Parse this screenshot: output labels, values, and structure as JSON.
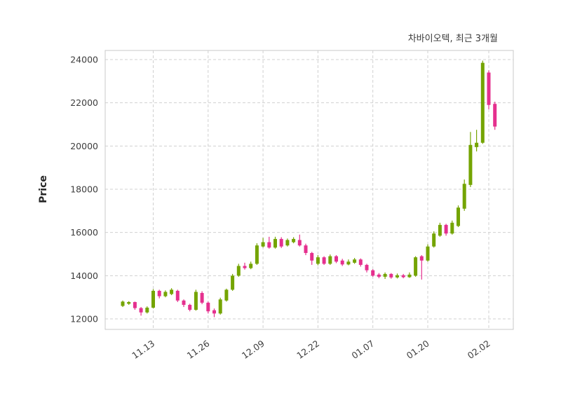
{
  "figure": {
    "title": "차바이오텍, 최근 3개월",
    "ylabel": "Price"
  },
  "chart_data": {
    "type": "candlestick",
    "title": "차바이오텍, 최근 3개월",
    "xlabel": "",
    "ylabel": "Price",
    "ylim": [
      11500,
      24400
    ],
    "grid": true,
    "legend": "none",
    "colors": {
      "up": "#74a402",
      "down": "#e5308e",
      "grid": "#d0d0d0",
      "spine": "#c8c8c8",
      "text": "#3d3d3d"
    },
    "y_ticks": [
      12000,
      14000,
      16000,
      18000,
      20000,
      22000,
      24000
    ],
    "x_ticks": [
      {
        "index": 5,
        "label": "11.13"
      },
      {
        "index": 14,
        "label": "11.26"
      },
      {
        "index": 23,
        "label": "12.09"
      },
      {
        "index": 32,
        "label": "12.22"
      },
      {
        "index": 41,
        "label": "01.07"
      },
      {
        "index": 50,
        "label": "01.20"
      },
      {
        "index": 60,
        "label": "02.02"
      }
    ],
    "ohlc_order": [
      "open",
      "high",
      "low",
      "close"
    ],
    "candles": [
      [
        12600,
        12850,
        12550,
        12800
      ],
      [
        12700,
        12820,
        12650,
        12780
      ],
      [
        12780,
        12800,
        12420,
        12500
      ],
      [
        12500,
        12550,
        12150,
        12300
      ],
      [
        12300,
        12580,
        12250,
        12520
      ],
      [
        12520,
        13380,
        12480,
        13300
      ],
      [
        13300,
        13350,
        12950,
        13050
      ],
      [
        13050,
        13320,
        13000,
        13250
      ],
      [
        13150,
        13420,
        13100,
        13350
      ],
      [
        13300,
        13350,
        12780,
        12850
      ],
      [
        12850,
        12900,
        12550,
        12650
      ],
      [
        12650,
        12700,
        12350,
        12420
      ],
      [
        12420,
        13350,
        12380,
        13250
      ],
      [
        13200,
        13280,
        12680,
        12750
      ],
      [
        12750,
        12800,
        12250,
        12350
      ],
      [
        12400,
        12480,
        12080,
        12250
      ],
      [
        12250,
        12980,
        12200,
        12900
      ],
      [
        12850,
        13400,
        12800,
        13350
      ],
      [
        13350,
        14080,
        13300,
        14000
      ],
      [
        14000,
        14550,
        13950,
        14450
      ],
      [
        14450,
        14600,
        14280,
        14350
      ],
      [
        14350,
        14650,
        14300,
        14550
      ],
      [
        14550,
        15500,
        14500,
        15400
      ],
      [
        15350,
        15750,
        15300,
        15550
      ],
      [
        15550,
        15800,
        15250,
        15300
      ],
      [
        15300,
        15800,
        15250,
        15700
      ],
      [
        15700,
        15780,
        15280,
        15350
      ],
      [
        15400,
        15720,
        15350,
        15650
      ],
      [
        15550,
        15780,
        15500,
        15700
      ],
      [
        15650,
        15900,
        15350,
        15400
      ],
      [
        15400,
        15480,
        14950,
        15050
      ],
      [
        15050,
        15100,
        14500,
        14700
      ],
      [
        14550,
        14950,
        14480,
        14850
      ],
      [
        14850,
        14900,
        14500,
        14550
      ],
      [
        14550,
        14980,
        14500,
        14900
      ],
      [
        14900,
        14950,
        14580,
        14650
      ],
      [
        14700,
        14780,
        14450,
        14520
      ],
      [
        14520,
        14750,
        14480,
        14650
      ],
      [
        14600,
        14820,
        14550,
        14750
      ],
      [
        14750,
        14800,
        14420,
        14500
      ],
      [
        14500,
        14550,
        14150,
        14250
      ],
      [
        14250,
        14300,
        13950,
        14000
      ],
      [
        14050,
        14120,
        13880,
        13950
      ],
      [
        13950,
        14150,
        13850,
        14080
      ],
      [
        14080,
        14120,
        13860,
        13920
      ],
      [
        13920,
        14100,
        13870,
        14020
      ],
      [
        14020,
        14080,
        13880,
        13930
      ],
      [
        13930,
        14150,
        13900,
        14050
      ],
      [
        14000,
        14900,
        13950,
        14850
      ],
      [
        14900,
        14950,
        13820,
        14700
      ],
      [
        14700,
        15450,
        14650,
        15350
      ],
      [
        15350,
        16050,
        15300,
        15950
      ],
      [
        15850,
        16450,
        15800,
        16350
      ],
      [
        16350,
        16400,
        15850,
        15950
      ],
      [
        15950,
        16550,
        15900,
        16450
      ],
      [
        16300,
        17250,
        16250,
        17150
      ],
      [
        17100,
        18450,
        17000,
        18250
      ],
      [
        18200,
        20650,
        18100,
        20050
      ],
      [
        19950,
        20750,
        19750,
        20150
      ],
      [
        20150,
        23950,
        20100,
        23850
      ],
      [
        23400,
        23500,
        21700,
        21900
      ],
      [
        21950,
        22050,
        20750,
        20900
      ]
    ]
  }
}
